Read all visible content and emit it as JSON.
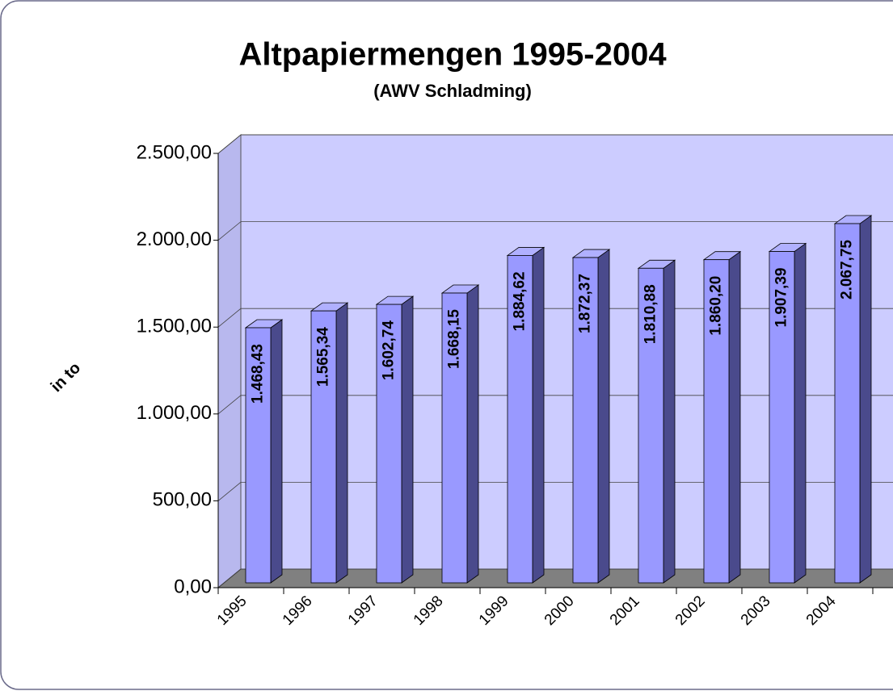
{
  "chart_data": {
    "type": "bar3d",
    "title": "Altpapiermengen 1995-2004",
    "subtitle": "(AWV Schladming)",
    "y_label": "in to",
    "categories": [
      "1995",
      "1996",
      "1997",
      "1998",
      "1999",
      "2000",
      "2001",
      "2002",
      "2003",
      "2004"
    ],
    "values": [
      1468.43,
      1565.34,
      1602.74,
      1668.15,
      1884.62,
      1872.37,
      1810.88,
      1860.2,
      1907.39,
      2067.75
    ],
    "value_labels": [
      "1.468,43",
      "1.565,34",
      "1.602,74",
      "1.668,15",
      "1.884,62",
      "1.872,37",
      "1.810,88",
      "1.860,20",
      "1.907,39",
      "2.067,75"
    ],
    "color": "#9999ff",
    "ylim": [
      0,
      2500
    ],
    "yticks": [
      {
        "value": 0,
        "label": "0,00"
      },
      {
        "value": 500,
        "label": "500,00"
      },
      {
        "value": 1000,
        "label": "1.000,00"
      },
      {
        "value": 1500,
        "label": "1.500,00"
      },
      {
        "value": 2000,
        "label": "2.000,00"
      },
      {
        "value": 2500,
        "label": "2.500,00"
      }
    ],
    "grid": true
  }
}
